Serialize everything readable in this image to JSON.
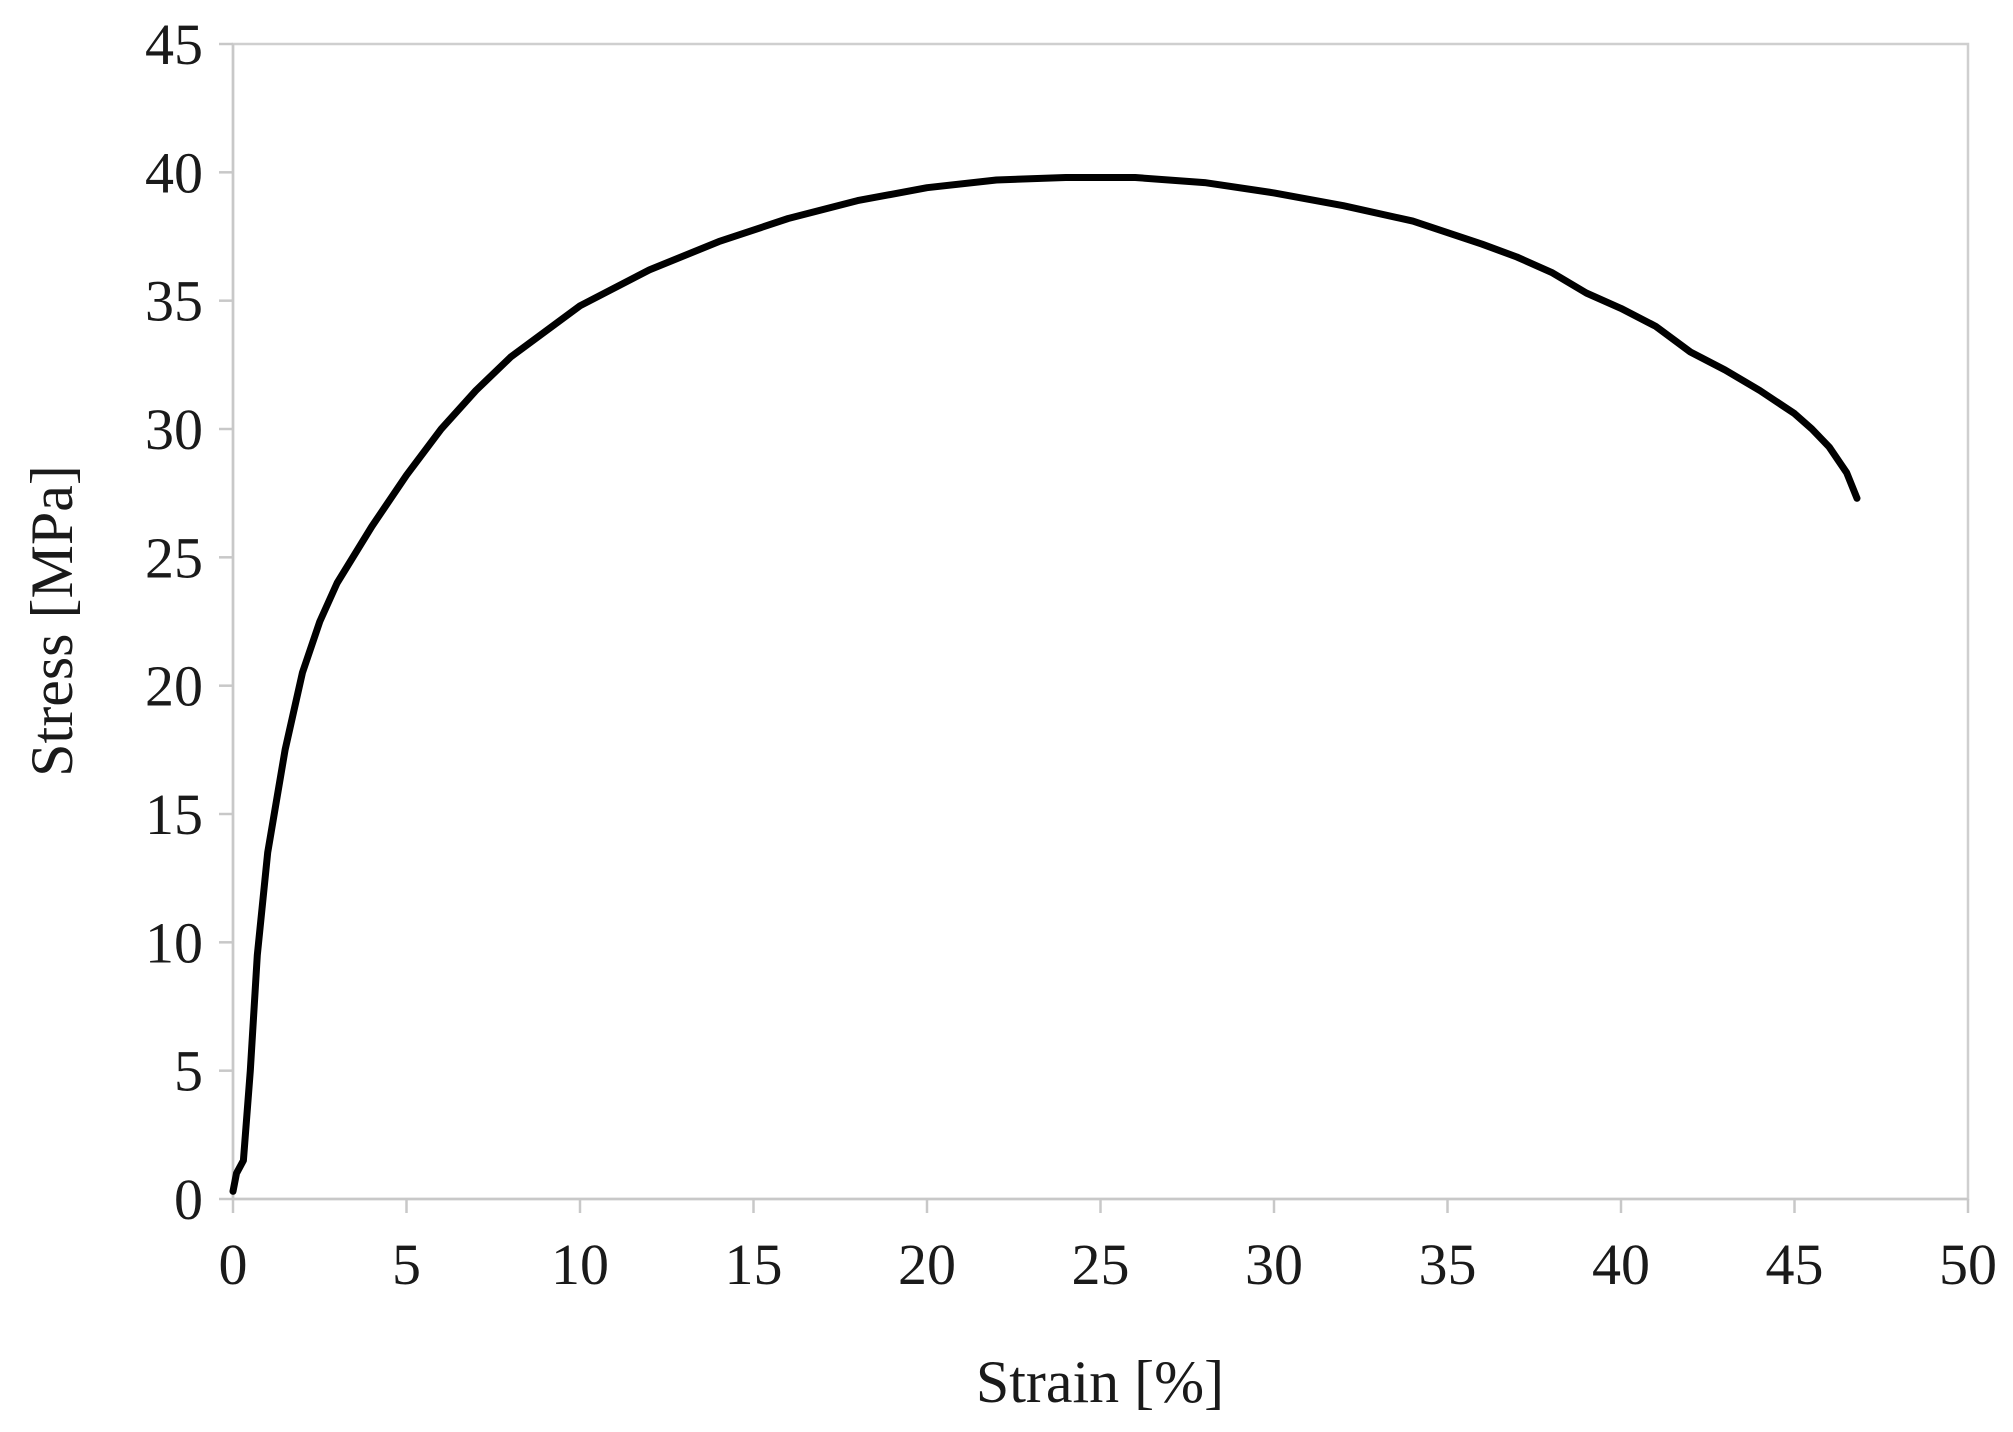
{
  "chart_data": {
    "type": "line",
    "title": "",
    "xlabel": "Strain [%]",
    "ylabel": "Stress [MPa]",
    "xlim": [
      0,
      50
    ],
    "ylim": [
      0,
      45
    ],
    "x_ticks": [
      "0",
      "5",
      "10",
      "15",
      "20",
      "25",
      "30",
      "35",
      "40",
      "45",
      "50"
    ],
    "y_ticks": [
      "0",
      "5",
      "10",
      "15",
      "20",
      "25",
      "30",
      "35",
      "40",
      "45"
    ],
    "grid": false,
    "legend": "none",
    "line_color": "#000000",
    "series": [
      {
        "x": [
          0,
          0.1,
          0.3,
          0.5,
          0.7,
          1.0,
          1.5,
          2.0,
          2.5,
          3.0,
          4.0,
          5.0,
          6.0,
          7.0,
          8.0,
          10.0,
          12.0,
          14.0,
          16.0,
          18.0,
          20.0,
          22.0,
          24.0,
          26.0,
          28.0,
          30.0,
          32.0,
          34.0,
          36.0,
          37.0,
          38.0,
          39.0,
          40.0,
          41.0,
          42.0,
          43.0,
          44.0,
          45.0,
          45.5,
          46.0,
          46.5,
          46.8
        ],
        "y": [
          0.3,
          1.0,
          1.5,
          5.0,
          9.5,
          13.5,
          17.5,
          20.5,
          22.5,
          24.0,
          26.2,
          28.2,
          30.0,
          31.5,
          32.8,
          34.8,
          36.2,
          37.3,
          38.2,
          38.9,
          39.4,
          39.7,
          39.8,
          39.8,
          39.6,
          39.2,
          38.7,
          38.1,
          37.2,
          36.7,
          36.1,
          35.3,
          34.7,
          34.0,
          33.0,
          32.3,
          31.5,
          30.6,
          30.0,
          29.3,
          28.3,
          27.3
        ]
      }
    ]
  }
}
